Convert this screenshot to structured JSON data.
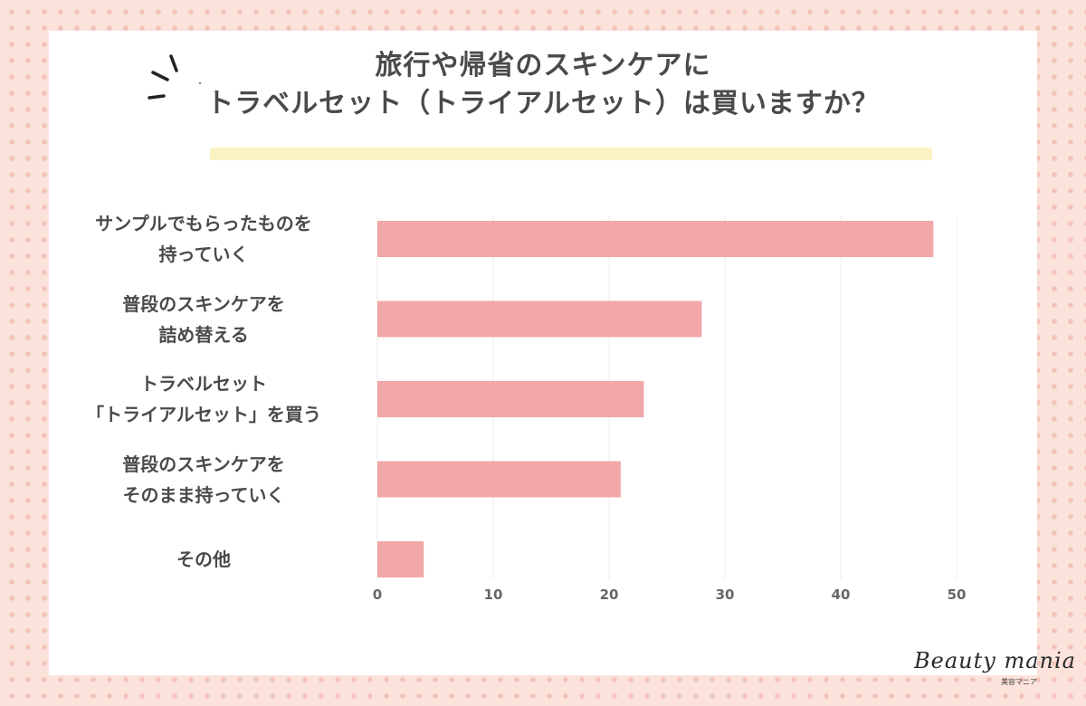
{
  "chart_data": {
    "type": "bar",
    "orientation": "horizontal",
    "title_lines": [
      "旅行や帰省のスキンケアに",
      "トラベルセット（トライアルセット）は買いますか？"
    ],
    "categories": [
      [
        "サンプルでもらったものを",
        "持っていく"
      ],
      [
        "普段のスキンケアを",
        "詰め替える"
      ],
      [
        "トラベルセット",
        "「トライアルセット」を買う"
      ],
      [
        "普段のスキンケアを",
        "そのまま持っていく"
      ],
      [
        "その他"
      ]
    ],
    "values": [
      48,
      28,
      23,
      21,
      4
    ],
    "xlim": [
      0,
      50
    ],
    "xticks": [
      "0",
      "10",
      "20",
      "30",
      "40",
      "50"
    ],
    "grid": true,
    "bar_color": "#f2a7a8",
    "grid_color": "#eeeeee"
  },
  "branding": {
    "logo_text": "Beauty mania",
    "logo_sub": "美容マニア"
  }
}
